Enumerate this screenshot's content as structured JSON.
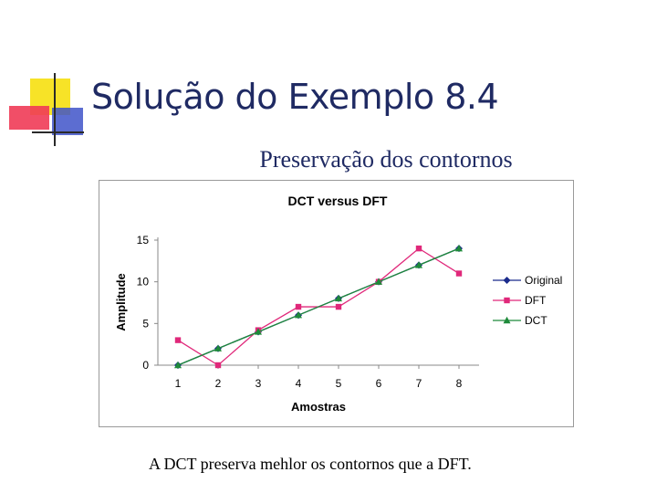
{
  "slide": {
    "title": "Solução do Exemplo 8.4",
    "subtitle": "Preservação dos contornos",
    "caption": "A DCT preserva mehlor os contornos que a  DFT."
  },
  "colors": {
    "title": "#1f2a63",
    "logo_yellow": "#f7e327",
    "logo_red": "#ef3b57",
    "logo_blue": "#3f53c9",
    "logo_line": "#2a2a2a"
  },
  "chart_data": {
    "type": "line",
    "title": "DCT versus DFT",
    "xlabel": "Amostras",
    "ylabel": "Amplitude",
    "categories": [
      "1",
      "2",
      "3",
      "4",
      "5",
      "6",
      "7",
      "8"
    ],
    "yticks": [
      "0",
      "5",
      "10",
      "15"
    ],
    "ylim": [
      0,
      15
    ],
    "grid": false,
    "legend_position": "right",
    "series": [
      {
        "name": "Original",
        "values": [
          0,
          2,
          4,
          6,
          8,
          10,
          12,
          14
        ],
        "color": "#1b2b8c",
        "marker": "diamond"
      },
      {
        "name": "DFT",
        "values": [
          3,
          0,
          4.2,
          7,
          7,
          10,
          14,
          11
        ],
        "color": "#e0287a",
        "marker": "square"
      },
      {
        "name": "DCT",
        "values": [
          0,
          2,
          4,
          6,
          8,
          10,
          12,
          14
        ],
        "color": "#1e8a3a",
        "marker": "triangle"
      }
    ]
  }
}
